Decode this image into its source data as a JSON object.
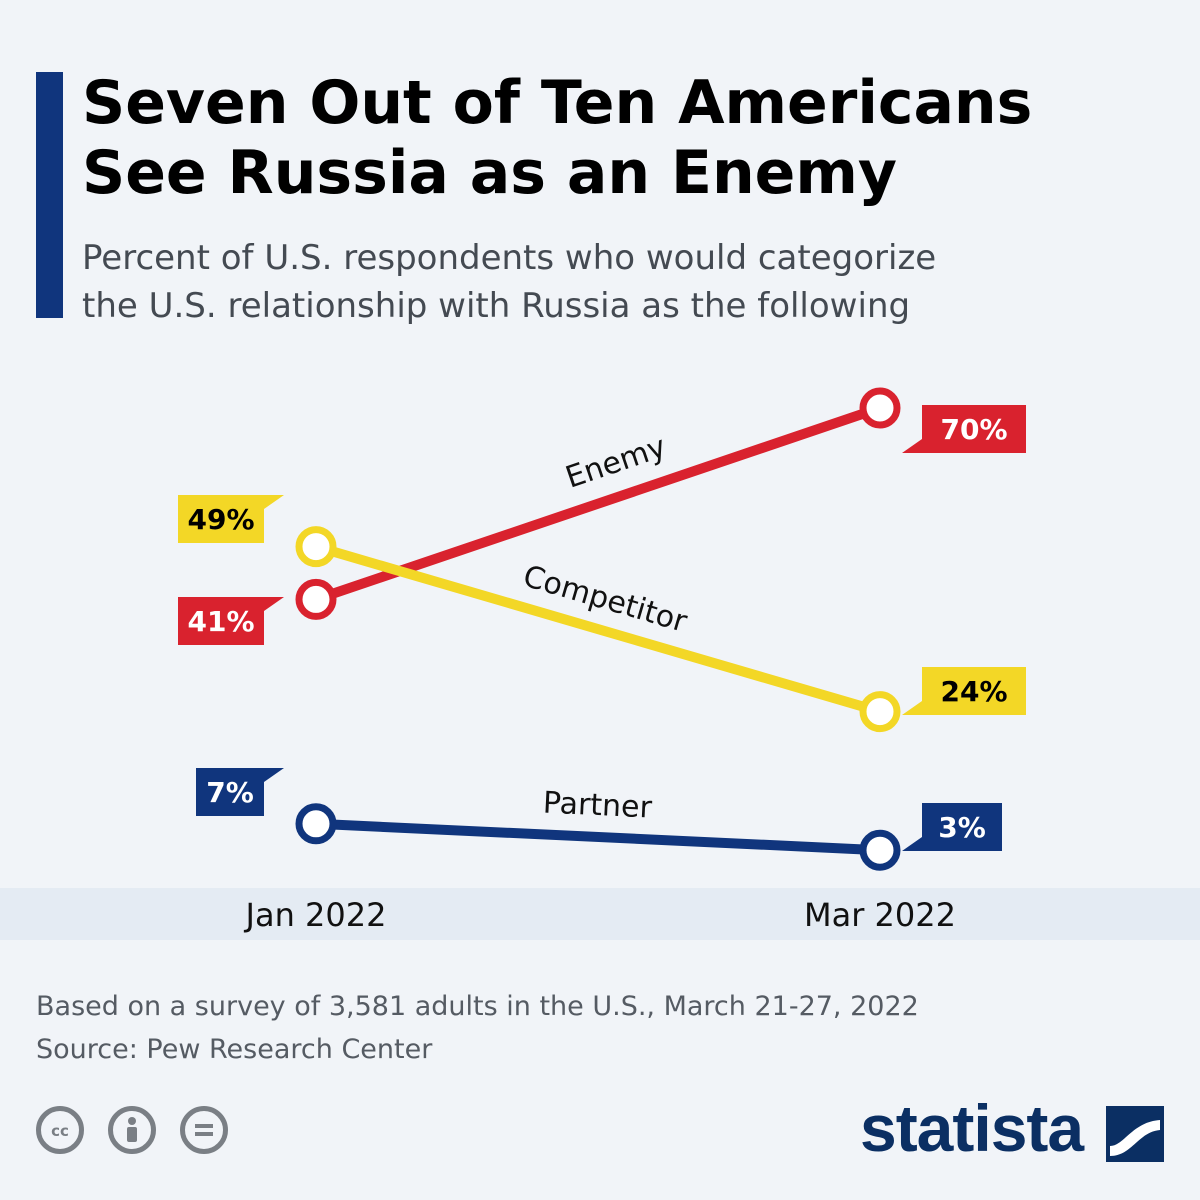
{
  "header": {
    "title_line1": "Seven Out of Ten Americans",
    "title_line2": "See Russia as an Enemy",
    "subtitle_line1": "Percent of U.S. respondents who would categorize",
    "subtitle_line2": "the U.S. relationship with Russia as the following"
  },
  "chart_data": {
    "type": "line",
    "categories": [
      "Jan 2022",
      "Mar 2022"
    ],
    "series": [
      {
        "name": "Enemy",
        "values": [
          41,
          70
        ],
        "labels": [
          "41%",
          "70%"
        ],
        "color": "#d9222e",
        "label_text_color": "#ffffff"
      },
      {
        "name": "Competitor",
        "values": [
          49,
          24
        ],
        "labels": [
          "49%",
          "24%"
        ],
        "color": "#f3d726",
        "label_text_color": "#000000"
      },
      {
        "name": "Partner",
        "values": [
          7,
          3
        ],
        "labels": [
          "7%",
          "3%"
        ],
        "color": "#10357d",
        "label_text_color": "#ffffff"
      }
    ]
  },
  "footer": {
    "note": "Based on a survey of 3,581 adults in the U.S., March 21-27, 2022",
    "source": "Source: Pew Research Center",
    "brand": "statista",
    "license_icons": [
      "cc-icon",
      "attribution-icon",
      "no-derivatives-icon"
    ]
  },
  "colors": {
    "background": "#f1f4f8",
    "accent": "#10357d"
  }
}
